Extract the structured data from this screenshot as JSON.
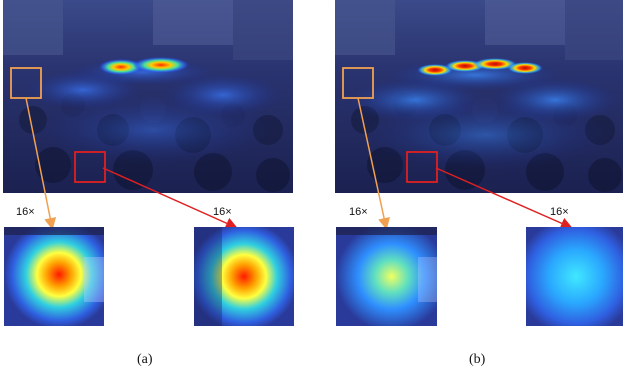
{
  "panels": [
    {
      "id": "a",
      "caption": "(a)",
      "zoom_left_label": "16×",
      "zoom_right_label": "16×",
      "colors": {
        "orange_box": "#f0a050",
        "red_box": "#e02020",
        "overlay": "#1a237e"
      }
    },
    {
      "id": "b",
      "caption": "(b)",
      "zoom_left_label": "16×",
      "zoom_right_label": "16×",
      "colors": {
        "orange_box": "#f0a050",
        "red_box": "#e02020",
        "overlay": "#1a237e"
      }
    }
  ]
}
